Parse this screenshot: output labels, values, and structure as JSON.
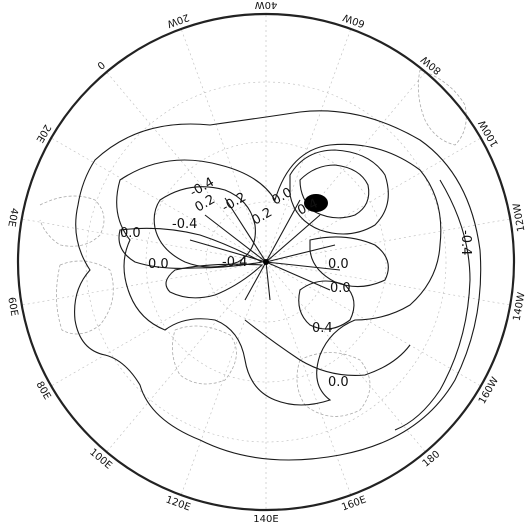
{
  "projection": "polar-stereographic",
  "longitude_labels": [
    {
      "text": "40W",
      "lon": -40
    },
    {
      "text": "60W",
      "lon": -60
    },
    {
      "text": "80W",
      "lon": -80
    },
    {
      "text": "100W",
      "lon": -100
    },
    {
      "text": "120W",
      "lon": -120
    },
    {
      "text": "140W",
      "lon": -140
    },
    {
      "text": "160W",
      "lon": -160
    },
    {
      "text": "180",
      "lon": 180
    },
    {
      "text": "160E",
      "lon": 160
    },
    {
      "text": "140E",
      "lon": 140
    },
    {
      "text": "120E",
      "lon": 120
    },
    {
      "text": "100E",
      "lon": 100
    },
    {
      "text": "80E",
      "lon": 80
    },
    {
      "text": "60E",
      "lon": 60
    },
    {
      "text": "40E",
      "lon": 40
    },
    {
      "text": "20E",
      "lon": 20
    },
    {
      "text": "0",
      "lon": 0
    },
    {
      "text": "20W",
      "lon": -20
    }
  ],
  "contour_labels": [
    "-0.4",
    "0.0",
    "0.0",
    "0.0",
    "0.4",
    "-0.4",
    "0.0",
    "0.0",
    "0.4",
    "-0.4",
    "-0.4",
    "0.2",
    "0.2",
    "-0.2",
    "0.0"
  ],
  "extremum_fill": "#000000",
  "line_color": "#1a1a1a"
}
